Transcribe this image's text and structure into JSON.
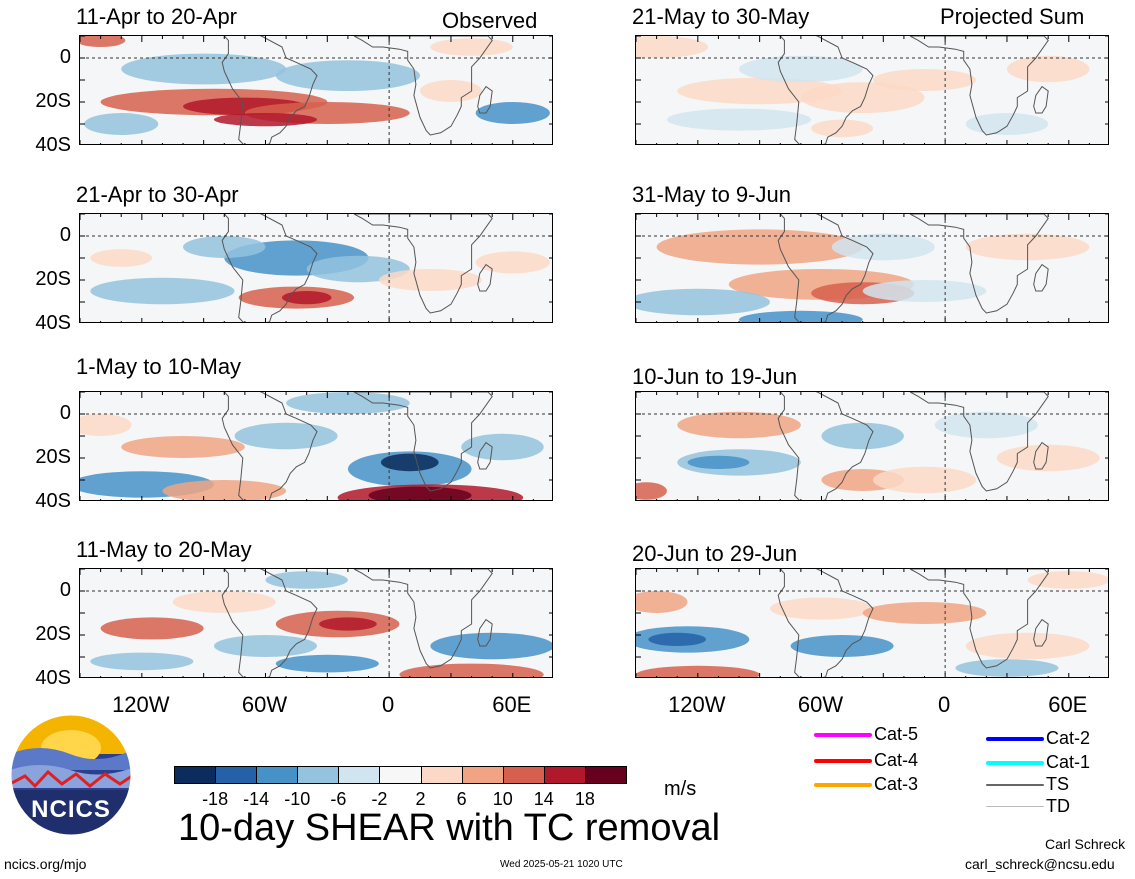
{
  "header": {
    "observed_label": "Observed",
    "projected_label": "Projected Sum"
  },
  "panels": [
    {
      "title": "11-Apr to 20-Apr",
      "col": 0,
      "row": 0,
      "pattern": 0
    },
    {
      "title": "21-Apr to 30-Apr",
      "col": 0,
      "row": 1,
      "pattern": 1
    },
    {
      "title": "1-May to 10-May",
      "col": 0,
      "row": 2,
      "pattern": 2
    },
    {
      "title": "11-May to 20-May",
      "col": 0,
      "row": 3,
      "pattern": 3
    },
    {
      "title": "21-May to 30-May",
      "col": 1,
      "row": 0,
      "pattern": 4
    },
    {
      "title": "31-May to 9-Jun",
      "col": 1,
      "row": 1,
      "pattern": 5
    },
    {
      "title": "10-Jun to 19-Jun",
      "col": 1,
      "row": 2,
      "pattern": 6
    },
    {
      "title": "20-Jun to 29-Jun",
      "col": 1,
      "row": 3,
      "pattern": 7
    }
  ],
  "y_ticks": [
    "0",
    "20S",
    "40S"
  ],
  "x_ticks": [
    "120W",
    "60W",
    "0",
    "60E"
  ],
  "colorbar": {
    "colors": [
      "#0b2c5c",
      "#2461a8",
      "#4692c8",
      "#93c3de",
      "#d1e5f0",
      "#f7f7f7",
      "#fbd9c6",
      "#f0a484",
      "#d6604d",
      "#b2182b",
      "#67001f"
    ],
    "labels": [
      "-18",
      "-14",
      "-10",
      "-6",
      "-2",
      "2",
      "6",
      "10",
      "14",
      "18"
    ],
    "unit": "m/s"
  },
  "legend": [
    {
      "label": "Cat-5",
      "color": "#ff00ff"
    },
    {
      "label": "Cat-4",
      "color": "#ff0000"
    },
    {
      "label": "Cat-3",
      "color": "#ffa500"
    },
    {
      "label": "Cat-2",
      "color": "#0000ff"
    },
    {
      "label": "Cat-1",
      "color": "#00ffff"
    },
    {
      "label": "TS",
      "color": "#666666"
    },
    {
      "label": "TD",
      "color": "#bbbbbb"
    }
  ],
  "logo_text": "NCICS",
  "main_title": "10-day SHEAR with TC removal",
  "footer": {
    "website": "ncics.org/mjo",
    "timestamp": "Wed 2025-05-21 1020 UTC",
    "author": "Carl Schreck",
    "email": "carl_schreck@ncsu.edu"
  }
}
